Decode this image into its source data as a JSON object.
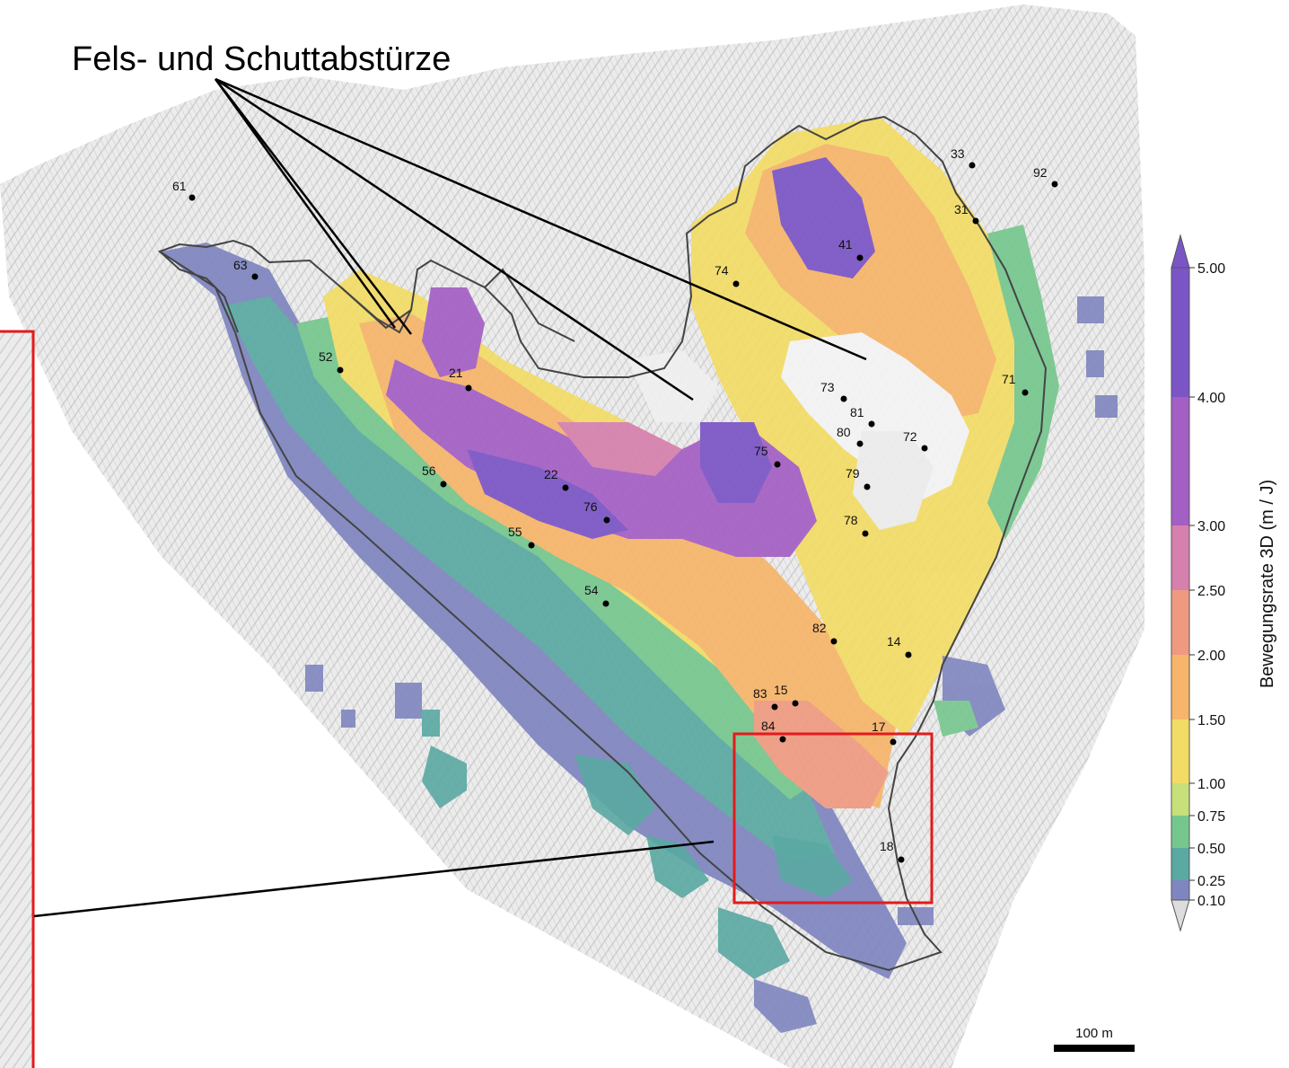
{
  "annotation": {
    "rockfall_label": "Fels- und Schuttabstürze"
  },
  "legend": {
    "title": "Bewegungsrate 3D (m / J)",
    "ticks": [
      "5.00",
      "4.00",
      "3.00",
      "2.50",
      "2.00",
      "1.50",
      "1.00",
      "0.75",
      "0.50",
      "0.25",
      "0.10"
    ],
    "colors": [
      "#7b55c6",
      "#a45fc4",
      "#d680ad",
      "#ef9a80",
      "#f6b56a",
      "#f3dc66",
      "#c7e07a",
      "#76c78e",
      "#5aa9a2",
      "#7f86bf"
    ]
  },
  "scale_bar": {
    "label": "100 m"
  },
  "points": [
    {
      "id": "61"
    },
    {
      "id": "63"
    },
    {
      "id": "52"
    },
    {
      "id": "21"
    },
    {
      "id": "56"
    },
    {
      "id": "22"
    },
    {
      "id": "76"
    },
    {
      "id": "55"
    },
    {
      "id": "54"
    },
    {
      "id": "74"
    },
    {
      "id": "41"
    },
    {
      "id": "33"
    },
    {
      "id": "92"
    },
    {
      "id": "31"
    },
    {
      "id": "71"
    },
    {
      "id": "73"
    },
    {
      "id": "81"
    },
    {
      "id": "80"
    },
    {
      "id": "72"
    },
    {
      "id": "75"
    },
    {
      "id": "79"
    },
    {
      "id": "78"
    },
    {
      "id": "82"
    },
    {
      "id": "14"
    },
    {
      "id": "83"
    },
    {
      "id": "15"
    },
    {
      "id": "84"
    },
    {
      "id": "17"
    },
    {
      "id": "18"
    }
  ]
}
